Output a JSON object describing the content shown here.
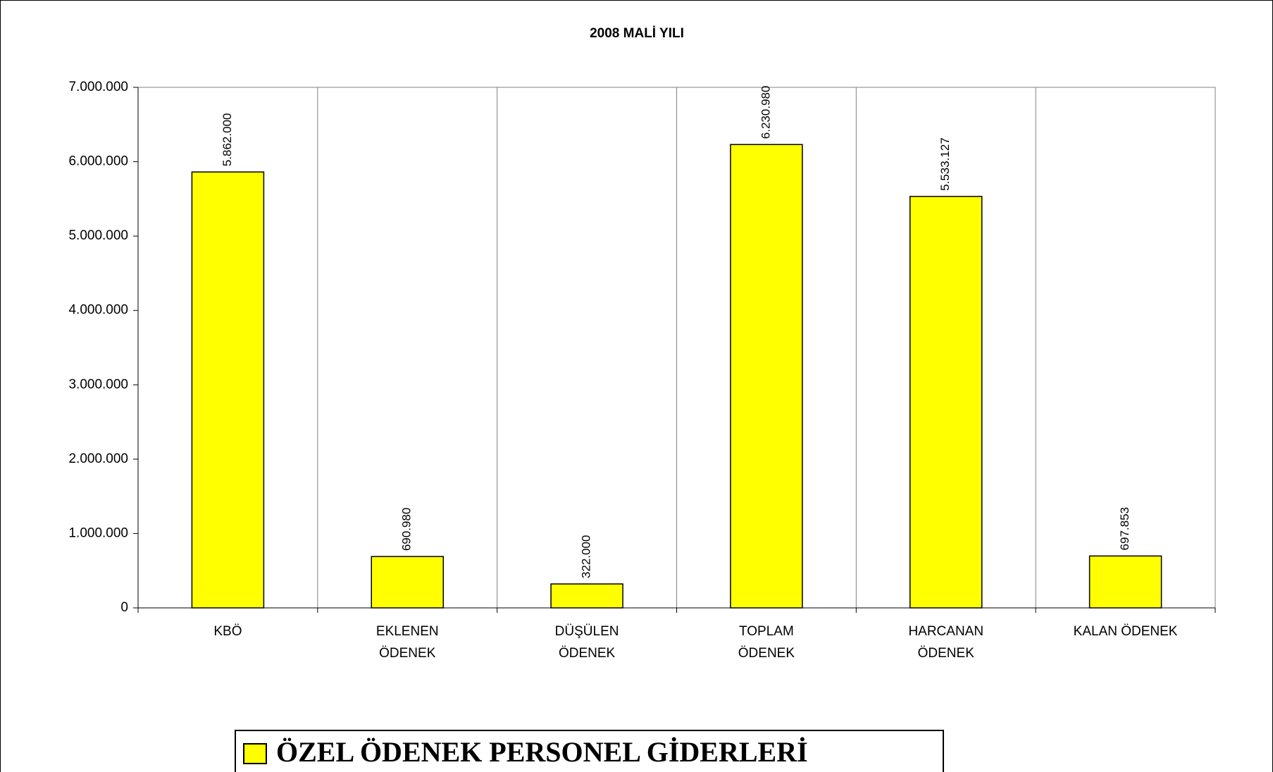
{
  "chart_data": {
    "type": "bar",
    "title": "2008 MALİ YILI",
    "categories": [
      "KBÖ",
      "EKLENEN ÖDENEK",
      "DÜŞÜLEN ÖDENEK",
      "TOPLAM ÖDENEK",
      "HARCANAN ÖDENEK",
      "KALAN ÖDENEK"
    ],
    "series": [
      {
        "name": "ÖZEL ÖDENEK PERSONEL GİDERLERİ",
        "color": "#ffff00",
        "values": [
          5862000,
          690980,
          322000,
          6230980,
          5533127,
          697853
        ],
        "value_labels": [
          "5.862.000",
          "690.980",
          "322.000",
          "6.230.980",
          "5.533.127",
          "697.853"
        ]
      }
    ],
    "ylim": [
      0,
      7000000
    ],
    "yticks": [
      0,
      {
        "value": 1000000,
        "label": "1.000.000"
      },
      {
        "value": 2000000,
        "label": "2.000.000"
      },
      {
        "value": 3000000,
        "label": "3.000.000"
      },
      {
        "value": 4000000,
        "label": "4.000.000"
      },
      {
        "value": 5000000,
        "label": "5.000.000"
      },
      {
        "value": 6000000,
        "label": "6.000.000"
      },
      {
        "value": 7000000,
        "label": "7.000.000"
      }
    ],
    "grid": true,
    "legend": "bottom"
  }
}
